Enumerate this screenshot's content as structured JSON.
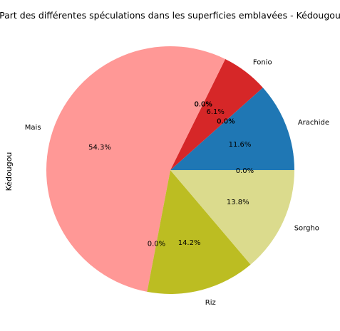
{
  "chart_data": {
    "type": "pie",
    "title": "Part des différentes spéculations dans les superficies emblavées - Kédougou",
    "ylabel": "Kédougou",
    "slices": [
      {
        "label": "Arachide",
        "value": 11.6,
        "pct_label": "11.6%",
        "color": "#1f77b4"
      },
      {
        "label": "",
        "value": 0.0,
        "pct_label": "0.0%",
        "color": "#ff7f0e"
      },
      {
        "label": "",
        "value": 0.0,
        "pct_label": "0.0%",
        "color": "#2ca02c"
      },
      {
        "label": "Fonio",
        "value": 6.1,
        "pct_label": "6.1%",
        "color": "#d62728"
      },
      {
        "label": "",
        "value": 0.0,
        "pct_label": "0.0%",
        "color": "#9467bd"
      },
      {
        "label": "",
        "value": 0.0,
        "pct_label": "0.0%",
        "color": "#8c564b"
      },
      {
        "label": "",
        "value": 0.0,
        "pct_label": "0.0%",
        "color": "#e377c2"
      },
      {
        "label": "Mais",
        "value": 54.3,
        "pct_label": "54.3%",
        "color": "#ff9896"
      },
      {
        "label": "",
        "value": 0.0,
        "pct_label": "0.0%",
        "color": "#7f7f7f"
      },
      {
        "label": "Riz",
        "value": 14.2,
        "pct_label": "14.2%",
        "color": "#bcbd22"
      },
      {
        "label": "Sorgho",
        "value": 13.8,
        "pct_label": "13.8%",
        "color": "#dbdb8d"
      },
      {
        "label": "",
        "value": 0.0,
        "pct_label": "0.0%",
        "color": "#17becf"
      }
    ]
  }
}
